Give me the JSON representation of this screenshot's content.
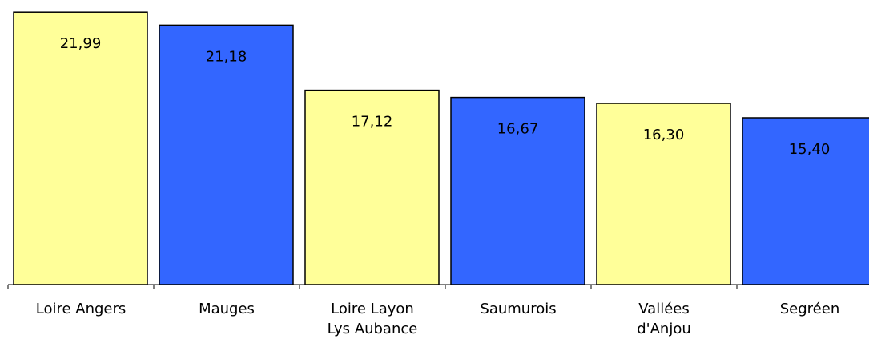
{
  "chart_data": {
    "type": "bar",
    "categories": [
      "Loire Angers",
      "Mauges",
      "Loire Layon\nLys Aubance",
      "Saumurois",
      "Vallées\nd'Anjou",
      "Segréen"
    ],
    "values": [
      21.99,
      21.18,
      17.12,
      16.67,
      16.3,
      15.4
    ],
    "value_labels": [
      "21,99",
      "21,18",
      "17,12",
      "16,67",
      "16,30",
      "15,40"
    ],
    "colors": [
      "#ffff99",
      "#3366ff",
      "#ffff99",
      "#3366ff",
      "#ffff99",
      "#3366ff"
    ],
    "ylim": [
      5,
      22.75
    ]
  }
}
